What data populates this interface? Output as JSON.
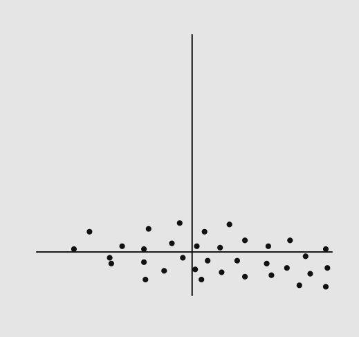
{
  "chart_data": {
    "type": "scatter",
    "title": "",
    "xlabel": "",
    "ylabel": "",
    "grid": false,
    "legend": "none",
    "xlim": [
      -10,
      9
    ],
    "ylim": [
      -3,
      15
    ],
    "axes_cross_at": [
      0,
      0
    ],
    "colors": {
      "background": "#e5e5e5",
      "axis": "#111111",
      "point": "#111111"
    },
    "series": [
      {
        "points": [
          [
            -6.6,
            1.4
          ],
          [
            -2.8,
            1.6
          ],
          [
            -0.8,
            2.0
          ],
          [
            0.8,
            1.4
          ],
          [
            2.4,
            1.9
          ],
          [
            -7.6,
            0.2
          ],
          [
            -4.5,
            0.4
          ],
          [
            -3.1,
            0.2
          ],
          [
            -1.3,
            0.6
          ],
          [
            0.3,
            0.4
          ],
          [
            1.8,
            0.3
          ],
          [
            3.4,
            0.8
          ],
          [
            4.9,
            0.4
          ],
          [
            6.3,
            0.8
          ],
          [
            8.6,
            0.2
          ],
          [
            -5.3,
            -0.4
          ],
          [
            -3.1,
            -0.7
          ],
          [
            -0.6,
            -0.4
          ],
          [
            1.0,
            -0.6
          ],
          [
            2.9,
            -0.6
          ],
          [
            7.3,
            -0.3
          ],
          [
            -5.2,
            -0.8
          ],
          [
            -1.8,
            -1.3
          ],
          [
            0.2,
            -1.2
          ],
          [
            4.8,
            -0.8
          ],
          [
            6.1,
            -1.1
          ],
          [
            8.7,
            -1.1
          ],
          [
            -3.0,
            -1.9
          ],
          [
            0.6,
            -1.9
          ],
          [
            1.9,
            -1.4
          ],
          [
            3.4,
            -1.7
          ],
          [
            5.1,
            -1.6
          ],
          [
            7.6,
            -1.5
          ],
          [
            6.9,
            -2.3
          ],
          [
            8.6,
            -2.4
          ]
        ]
      }
    ]
  }
}
